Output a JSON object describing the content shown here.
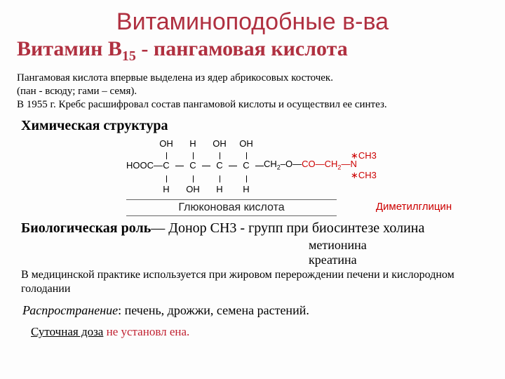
{
  "title_top": "Витаминоподобные в-ва",
  "title_main_html": "Витамин В<sub>15</sub> - пангамовая кислота",
  "intro": "Пангамовая кислота впервые выделена из ядер абрикосовых косточек.\n(пан - всюду; гами – семя).\n В 1955 г. Кребс расшифровал состав пангамовой кислоты и осуществил ее синтез.",
  "section_chem": "Химическая структура",
  "chem": {
    "top_labels": [
      "OH",
      "H",
      "OH",
      "OH"
    ],
    "left": "HOOC",
    "carbons": 4,
    "bottoms": [
      "H",
      "OH",
      "H",
      "H"
    ],
    "tail_html": "CH<sub>2</sub>–O—<span class='red'>CO—CH<sub>2</sub>—N</span>",
    "n_top": "CH3",
    "n_bot": "CH3",
    "label_left": "Глюконовая кислота",
    "label_right": "Диметилглицин",
    "colors": {
      "main": "#000000",
      "red": "#cc0000"
    }
  },
  "bio_heading": "Биологическая роль",
  "bio_text": "— Донор СН3 -  групп при биосинтезе  холина",
  "bio_list": [
    "метионина",
    "креатина"
  ],
  "bio_para2": "В медицинской практике используется при жировом перерождении печени и кислородном голодании",
  "dist_label": "Распространение",
  "dist_text": ": печень, дрожжи, семена растений.",
  "dose_label": "Суточная доза",
  "dose_text": " не установл ена."
}
